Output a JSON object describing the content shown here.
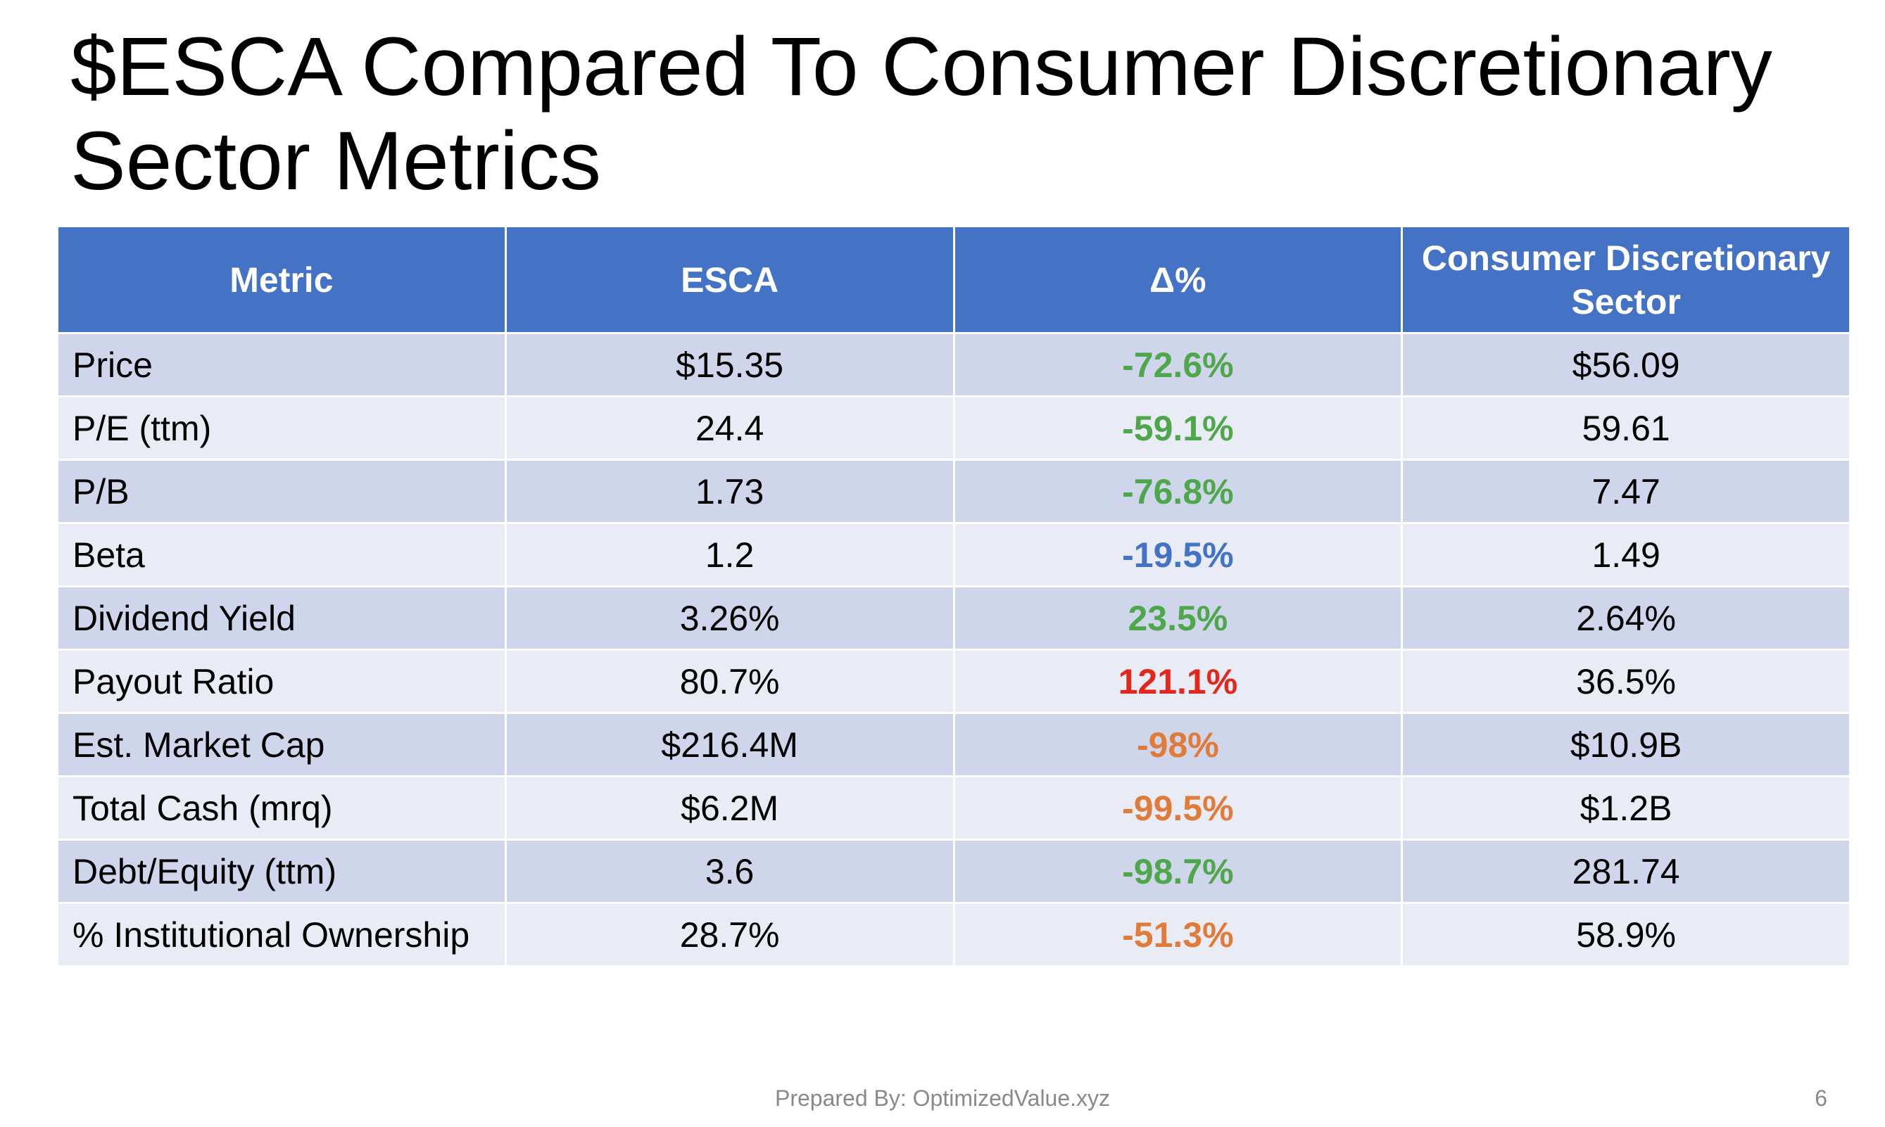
{
  "slide": {
    "title": "$ESCA Compared To Consumer Discretionary Sector Metrics",
    "footer": "Prepared By: OptimizedValue.xyz",
    "page_number": "6"
  },
  "colors": {
    "header_bg": "#4472c4",
    "row_band_dark": "#cfd5ea",
    "row_band_light": "#e9ebf5",
    "green": "#4ea84b",
    "blue": "#4472c4",
    "red": "#e3271d",
    "orange": "#e07b39"
  },
  "table": {
    "headers": [
      "Metric",
      "ESCA",
      "Δ%",
      "Consumer Discretionary Sector"
    ],
    "rows": [
      {
        "metric": "Price",
        "esca": "$15.35",
        "delta": "-72.6%",
        "delta_color": "green",
        "sector": "$56.09"
      },
      {
        "metric": "P/E (ttm)",
        "esca": "24.4",
        "delta": "-59.1%",
        "delta_color": "green",
        "sector": "59.61"
      },
      {
        "metric": "P/B",
        "esca": "1.73",
        "delta": "-76.8%",
        "delta_color": "green",
        "sector": "7.47"
      },
      {
        "metric": "Beta",
        "esca": "1.2",
        "delta": "-19.5%",
        "delta_color": "blue",
        "sector": "1.49"
      },
      {
        "metric": "Dividend Yield",
        "esca": "3.26%",
        "delta": "23.5%",
        "delta_color": "green",
        "sector": "2.64%"
      },
      {
        "metric": "Payout Ratio",
        "esca": "80.7%",
        "delta": "121.1%",
        "delta_color": "red",
        "sector": "36.5%"
      },
      {
        "metric": "Est. Market Cap",
        "esca": "$216.4M",
        "delta": "-98%",
        "delta_color": "orange",
        "sector": "$10.9B"
      },
      {
        "metric": "Total Cash (mrq)",
        "esca": "$6.2M",
        "delta": "-99.5%",
        "delta_color": "orange",
        "sector": "$1.2B"
      },
      {
        "metric": "Debt/Equity (ttm)",
        "esca": "3.6",
        "delta": "-98.7%",
        "delta_color": "green",
        "sector": "281.74"
      },
      {
        "metric": "% Institutional Ownership",
        "esca": "28.7%",
        "delta": "-51.3%",
        "delta_color": "orange",
        "sector": "58.9%"
      }
    ]
  }
}
